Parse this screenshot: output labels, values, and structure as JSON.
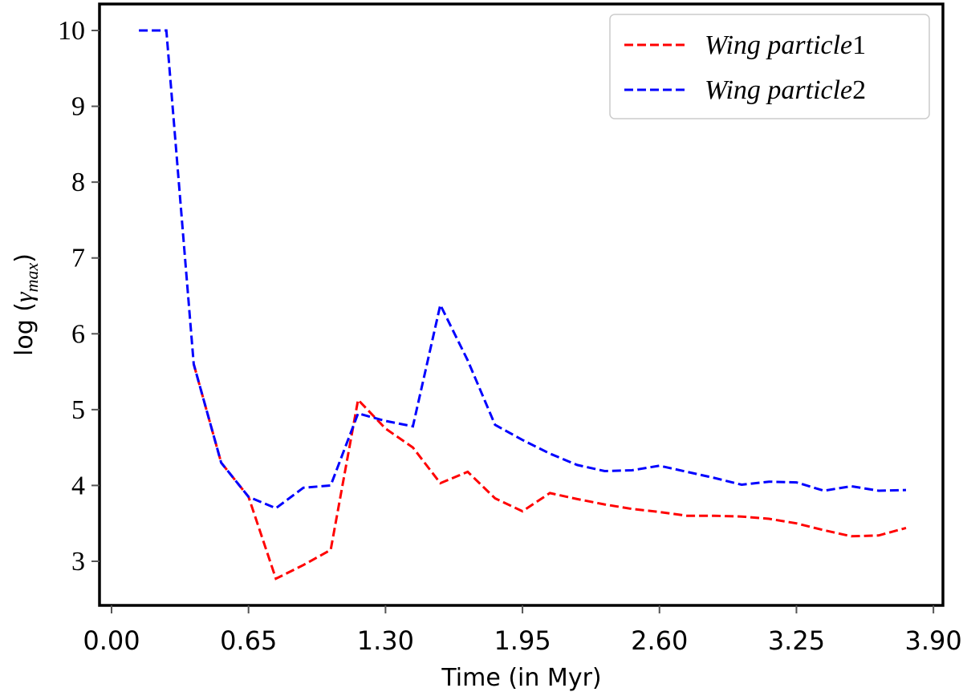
{
  "chart_data": {
    "type": "line",
    "title": "",
    "xlabel": "Time (in Myr)",
    "ylabel": "log (γ_max)",
    "ylabel_parts": {
      "prefix": "log (",
      "symbol": "γ",
      "subscript": "max",
      "suffix": ")"
    },
    "xlim": [
      -0.05,
      3.92
    ],
    "ylim": [
      2.45,
      10.35
    ],
    "xticks": [
      0.0,
      0.65,
      1.3,
      1.95,
      2.6,
      3.25,
      3.9
    ],
    "xtick_labels": [
      "0.00",
      "0.65",
      "1.30",
      "1.95",
      "2.60",
      "3.25",
      "3.90"
    ],
    "yticks": [
      3,
      4,
      5,
      6,
      7,
      8,
      9,
      10
    ],
    "ytick_labels": [
      "3",
      "4",
      "5",
      "6",
      "7",
      "8",
      "9",
      "10"
    ],
    "grid": false,
    "legend_position": "top-right",
    "series": [
      {
        "name": "Wing particle1",
        "legend_text": "Wing particle",
        "legend_num": "1",
        "color": "#ff0000",
        "style": "dashed",
        "x": [
          0.39,
          0.52,
          0.65,
          0.78,
          0.91,
          1.04,
          1.17,
          1.3,
          1.43,
          1.56,
          1.69,
          1.82,
          1.95,
          2.08,
          2.21,
          2.34,
          2.47,
          2.6,
          2.73,
          2.86,
          2.99,
          3.12,
          3.25,
          3.38,
          3.51,
          3.64,
          3.77
        ],
        "y": [
          5.6,
          4.3,
          3.85,
          2.77,
          2.95,
          3.15,
          5.13,
          4.75,
          4.5,
          4.03,
          4.18,
          3.83,
          3.66,
          3.9,
          3.82,
          3.75,
          3.69,
          3.65,
          3.6,
          3.6,
          3.59,
          3.56,
          3.5,
          3.41,
          3.33,
          3.34,
          3.44
        ]
      },
      {
        "name": "Wing particle2",
        "legend_text": "Wing particle",
        "legend_num": "2",
        "color": "#0000ff",
        "style": "dashed",
        "x": [
          0.13,
          0.26,
          0.39,
          0.52,
          0.65,
          0.78,
          0.91,
          1.04,
          1.17,
          1.3,
          1.43,
          1.56,
          1.69,
          1.82,
          1.95,
          2.08,
          2.21,
          2.34,
          2.47,
          2.6,
          2.73,
          2.86,
          2.99,
          3.12,
          3.25,
          3.38,
          3.51,
          3.64,
          3.77
        ],
        "y": [
          10,
          10,
          5.6,
          4.3,
          3.85,
          3.7,
          3.97,
          4.0,
          4.95,
          4.85,
          4.78,
          6.38,
          5.65,
          4.8,
          4.6,
          4.42,
          4.27,
          4.19,
          4.2,
          4.26,
          4.18,
          4.1,
          4.01,
          4.05,
          4.04,
          3.93,
          3.99,
          3.93,
          3.94
        ]
      }
    ]
  }
}
